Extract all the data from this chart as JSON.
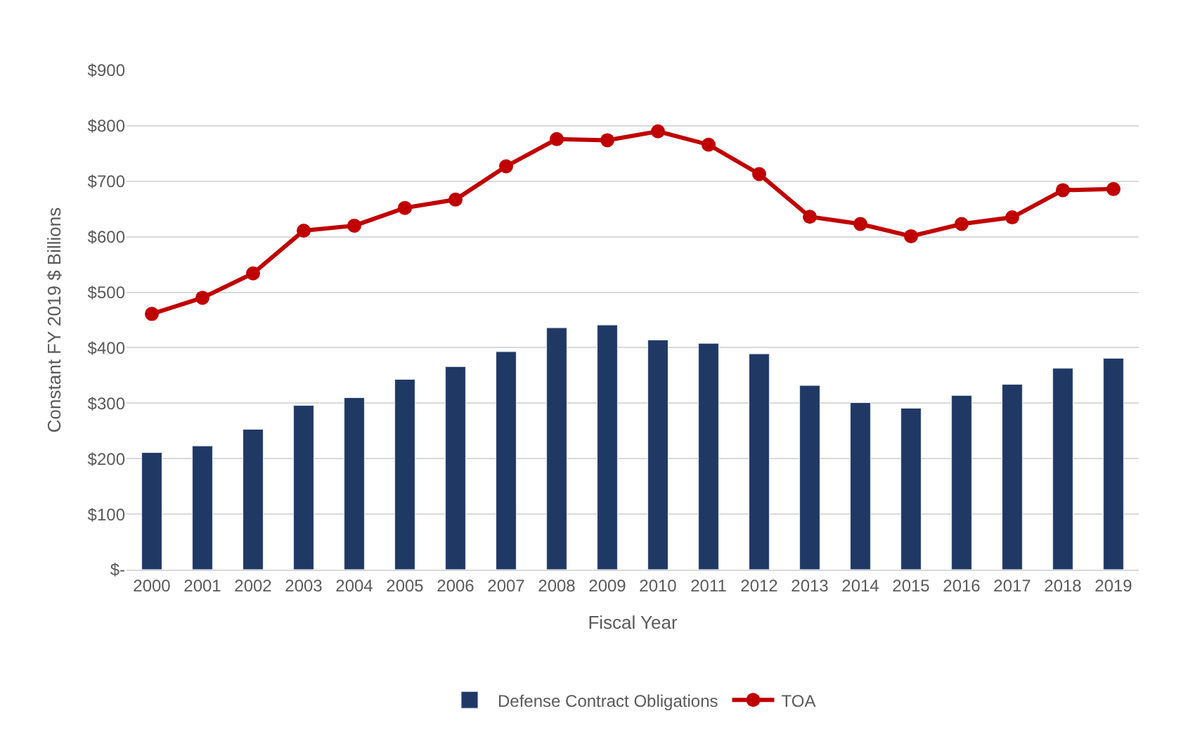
{
  "chart_data": {
    "type": "bar",
    "xlabel": "Fiscal Year",
    "ylabel": "Constant FY 2019 $ Billions",
    "categories": [
      "2000",
      "2001",
      "2002",
      "2003",
      "2004",
      "2005",
      "2006",
      "2007",
      "2008",
      "2009",
      "2010",
      "2011",
      "2012",
      "2013",
      "2014",
      "2015",
      "2016",
      "2017",
      "2018",
      "2019"
    ],
    "series": [
      {
        "name": "Defense Contract Obligations",
        "color": "#203864",
        "values": [
          211,
          223,
          253,
          296,
          310,
          343,
          366,
          393,
          436,
          441,
          414,
          408,
          389,
          332,
          301,
          291,
          314,
          334,
          363,
          381
        ]
      },
      {
        "name": "TOA",
        "type": "line",
        "color": "#c00000",
        "marker": "circle",
        "values": [
          461,
          490,
          534,
          611,
          620,
          652,
          667,
          727,
          776,
          774,
          790,
          766,
          713,
          636,
          623,
          601,
          623,
          635,
          684,
          686
        ]
      }
    ],
    "ylim": [
      0,
      900
    ],
    "yticks": [
      {
        "value": 0,
        "label": "$-"
      },
      {
        "value": 100,
        "label": "$100"
      },
      {
        "value": 200,
        "label": "$200"
      },
      {
        "value": 300,
        "label": "$300"
      },
      {
        "value": 400,
        "label": "$400"
      },
      {
        "value": 500,
        "label": "$500"
      },
      {
        "value": 600,
        "label": "$600"
      },
      {
        "value": 700,
        "label": "$700"
      },
      {
        "value": 800,
        "label": "$800"
      },
      {
        "value": 900,
        "label": "$900"
      }
    ],
    "grid": "y",
    "legend": "bottom"
  }
}
